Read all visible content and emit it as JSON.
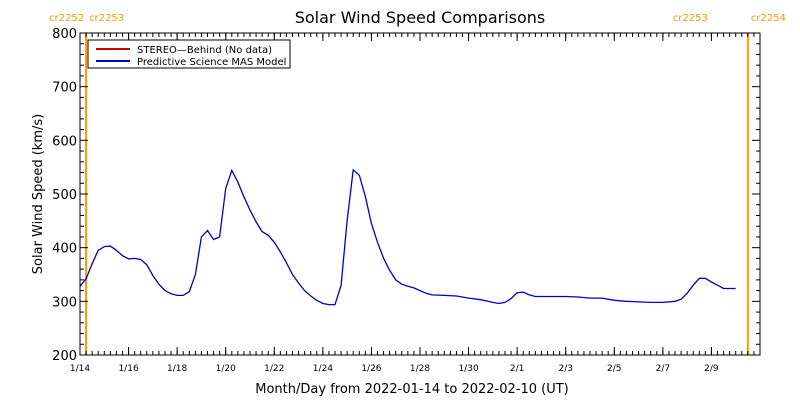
{
  "chart_data": {
    "type": "line",
    "title": "Solar Wind Speed Comparisons",
    "xlabel": "Month/Day from 2022-01-14 to 2022-02-10 (UT)",
    "ylabel": "Solar Wind Speed (km/s)",
    "ylim": [
      200,
      800
    ],
    "xlim": [
      "2022-01-14",
      "2022-02-11"
    ],
    "y_ticks": [
      200,
      300,
      400,
      500,
      600,
      700,
      800
    ],
    "x_ticks": [
      {
        "date": "2022-01-14",
        "label": "1/14"
      },
      {
        "date": "2022-01-16",
        "label": "1/16"
      },
      {
        "date": "2022-01-18",
        "label": "1/18"
      },
      {
        "date": "2022-01-20",
        "label": "1/20"
      },
      {
        "date": "2022-01-22",
        "label": "1/22"
      },
      {
        "date": "2022-01-24",
        "label": "1/24"
      },
      {
        "date": "2022-01-26",
        "label": "1/26"
      },
      {
        "date": "2022-01-28",
        "label": "1/28"
      },
      {
        "date": "2022-01-30",
        "label": "1/30"
      },
      {
        "date": "2022-02-01",
        "label": "2/1"
      },
      {
        "date": "2022-02-03",
        "label": "2/3"
      },
      {
        "date": "2022-02-05",
        "label": "2/5"
      },
      {
        "date": "2022-02-07",
        "label": "2/7"
      },
      {
        "date": "2022-02-09",
        "label": "2/9"
      }
    ],
    "legend_position": "top-left",
    "legend": [
      {
        "name": "STEREO—Behind (No data)",
        "color": "#cc0000"
      },
      {
        "name": "Predictive Science MAS Model",
        "color": "#0000cc"
      }
    ],
    "series": [
      {
        "name": "Predictive Science MAS Model",
        "color": "#0000cc",
        "points": [
          [
            "2022-01-14 00:00",
            328
          ],
          [
            "2022-01-14 06:00",
            342
          ],
          [
            "2022-01-14 12:00",
            370
          ],
          [
            "2022-01-14 18:00",
            395
          ],
          [
            "2022-01-15 00:00",
            402
          ],
          [
            "2022-01-15 06:00",
            403
          ],
          [
            "2022-01-15 12:00",
            395
          ],
          [
            "2022-01-15 18:00",
            385
          ],
          [
            "2022-01-16 00:00",
            379
          ],
          [
            "2022-01-16 06:00",
            380
          ],
          [
            "2022-01-16 12:00",
            378
          ],
          [
            "2022-01-16 18:00",
            368
          ],
          [
            "2022-01-17 00:00",
            348
          ],
          [
            "2022-01-17 06:00",
            332
          ],
          [
            "2022-01-17 12:00",
            320
          ],
          [
            "2022-01-17 18:00",
            314
          ],
          [
            "2022-01-18 00:00",
            311
          ],
          [
            "2022-01-18 06:00",
            311
          ],
          [
            "2022-01-18 12:00",
            318
          ],
          [
            "2022-01-18 18:00",
            350
          ],
          [
            "2022-01-19 00:00",
            420
          ],
          [
            "2022-01-19 06:00",
            432
          ],
          [
            "2022-01-19 12:00",
            415
          ],
          [
            "2022-01-19 18:00",
            420
          ],
          [
            "2022-01-20 00:00",
            510
          ],
          [
            "2022-01-20 06:00",
            544
          ],
          [
            "2022-01-20 12:00",
            522
          ],
          [
            "2022-01-20 18:00",
            495
          ],
          [
            "2022-01-21 00:00",
            470
          ],
          [
            "2022-01-21 06:00",
            448
          ],
          [
            "2022-01-21 12:00",
            430
          ],
          [
            "2022-01-21 18:00",
            423
          ],
          [
            "2022-01-22 00:00",
            410
          ],
          [
            "2022-01-22 06:00",
            392
          ],
          [
            "2022-01-22 12:00",
            372
          ],
          [
            "2022-01-22 18:00",
            350
          ],
          [
            "2022-01-23 00:00",
            334
          ],
          [
            "2022-01-23 06:00",
            320
          ],
          [
            "2022-01-23 12:00",
            310
          ],
          [
            "2022-01-23 18:00",
            302
          ],
          [
            "2022-01-24 00:00",
            296
          ],
          [
            "2022-01-24 06:00",
            294
          ],
          [
            "2022-01-24 12:00",
            294
          ],
          [
            "2022-01-24 18:00",
            330
          ],
          [
            "2022-01-25 00:00",
            450
          ],
          [
            "2022-01-25 06:00",
            545
          ],
          [
            "2022-01-25 12:00",
            535
          ],
          [
            "2022-01-25 18:00",
            495
          ],
          [
            "2022-01-26 00:00",
            445
          ],
          [
            "2022-01-26 06:00",
            410
          ],
          [
            "2022-01-26 12:00",
            380
          ],
          [
            "2022-01-26 18:00",
            358
          ],
          [
            "2022-01-27 00:00",
            340
          ],
          [
            "2022-01-27 06:00",
            332
          ],
          [
            "2022-01-27 12:00",
            328
          ],
          [
            "2022-01-27 18:00",
            325
          ],
          [
            "2022-01-28 00:00",
            320
          ],
          [
            "2022-01-28 06:00",
            315
          ],
          [
            "2022-01-28 12:00",
            312
          ],
          [
            "2022-01-29 00:00",
            311
          ],
          [
            "2022-01-29 12:00",
            310
          ],
          [
            "2022-01-30 00:00",
            306
          ],
          [
            "2022-01-30 12:00",
            303
          ],
          [
            "2022-01-31 00:00",
            298
          ],
          [
            "2022-01-31 06:00",
            296
          ],
          [
            "2022-01-31 12:00",
            298
          ],
          [
            "2022-01-31 18:00",
            305
          ],
          [
            "2022-02-01 00:00",
            316
          ],
          [
            "2022-02-01 06:00",
            317
          ],
          [
            "2022-02-01 12:00",
            312
          ],
          [
            "2022-02-01 18:00",
            309
          ],
          [
            "2022-02-02 12:00",
            309
          ],
          [
            "2022-02-03 00:00",
            309
          ],
          [
            "2022-02-03 12:00",
            308
          ],
          [
            "2022-02-04 00:00",
            306
          ],
          [
            "2022-02-04 12:00",
            306
          ],
          [
            "2022-02-05 00:00",
            302
          ],
          [
            "2022-02-05 12:00",
            300
          ],
          [
            "2022-02-06 00:00",
            299
          ],
          [
            "2022-02-06 12:00",
            298
          ],
          [
            "2022-02-07 00:00",
            298
          ],
          [
            "2022-02-07 12:00",
            300
          ],
          [
            "2022-02-07 18:00",
            304
          ],
          [
            "2022-02-08 00:00",
            315
          ],
          [
            "2022-02-08 06:00",
            330
          ],
          [
            "2022-02-08 12:00",
            343
          ],
          [
            "2022-02-08 18:00",
            343
          ],
          [
            "2022-02-09 00:00",
            336
          ],
          [
            "2022-02-09 06:00",
            330
          ],
          [
            "2022-02-09 12:00",
            324
          ],
          [
            "2022-02-10 00:00",
            324
          ]
        ]
      }
    ],
    "carrington_markers": [
      {
        "date": "2022-01-14 06:00",
        "left_label": "cr2252",
        "right_label": "cr2253",
        "color": "#ff9900"
      },
      {
        "date": "2022-02-10 12:00",
        "left_label": "cr2253",
        "right_label": "cr2254",
        "color": "#ff9900"
      }
    ],
    "grid": false
  }
}
